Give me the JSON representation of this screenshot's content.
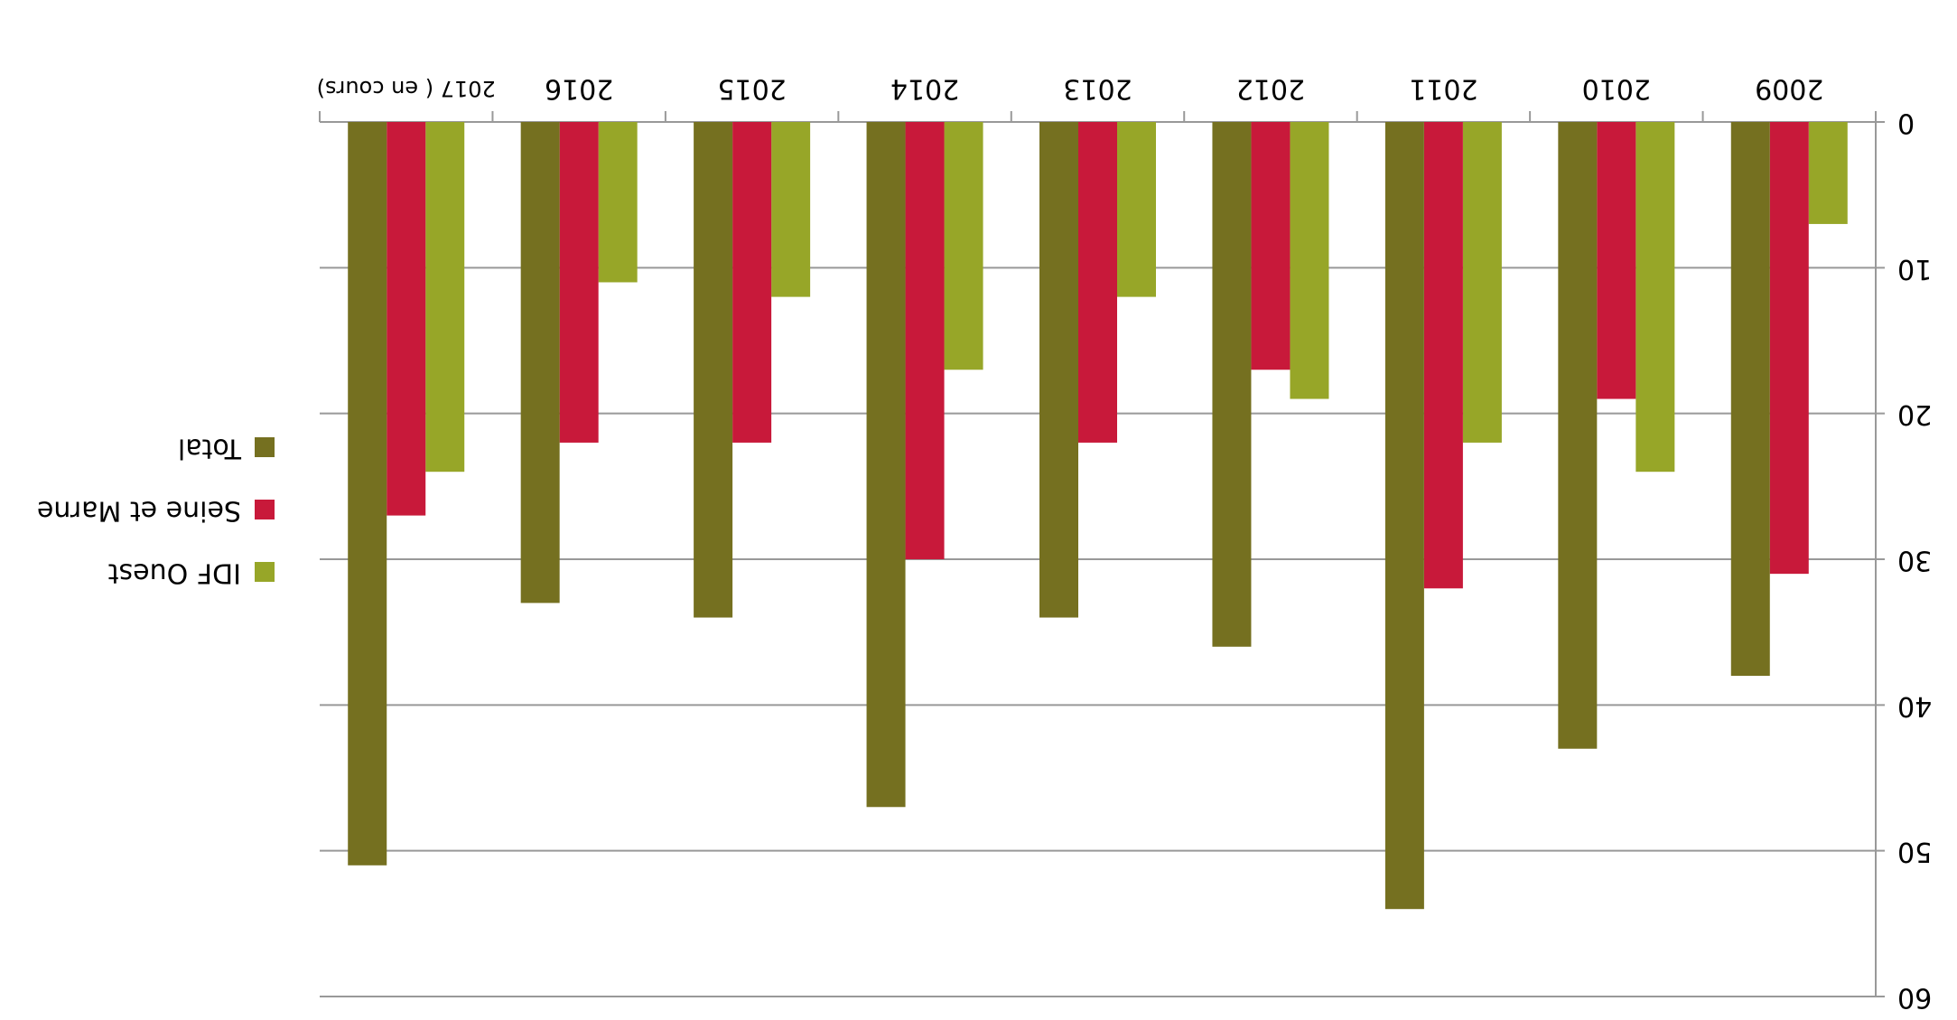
{
  "chart_data": {
    "type": "bar",
    "categories": [
      "2009",
      "2010",
      "2011",
      "2012",
      "2013",
      "2014",
      "2015",
      "2016",
      "2017 ( en cours)"
    ],
    "series": [
      {
        "name": "IDF Ouest",
        "color": "#97a628",
        "values": [
          7,
          24,
          22,
          19,
          12,
          17,
          12,
          11,
          24
        ]
      },
      {
        "name": "Seine et Marne",
        "color": "#c8193a",
        "values": [
          31,
          19,
          32,
          17,
          22,
          30,
          22,
          22,
          27
        ]
      },
      {
        "name": "Total",
        "color": "#757020",
        "values": [
          38,
          43,
          54,
          36,
          34,
          47,
          34,
          33,
          51
        ]
      }
    ],
    "ylim": [
      0,
      60
    ],
    "yticks": [
      0,
      10,
      20,
      30,
      40,
      50,
      60
    ],
    "grid": true,
    "legend": "right"
  }
}
